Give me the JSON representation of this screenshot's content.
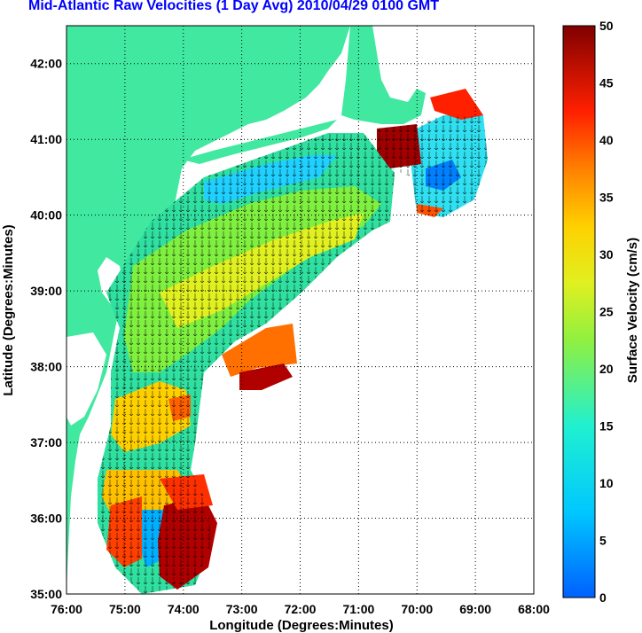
{
  "title": "Mid-Atlantic Raw Velocities (1 Day Avg) 2010/04/29 0100 GMT",
  "x_axis": {
    "label": "Longitude (Degrees:Minutes)",
    "ticks": [
      "76:00",
      "75:00",
      "74:00",
      "73:00",
      "72:00",
      "71:00",
      "70:00",
      "69:00",
      "68:00"
    ]
  },
  "y_axis": {
    "label": "Latitude (Degrees:Minutes)",
    "ticks": [
      "35:00",
      "36:00",
      "37:00",
      "38:00",
      "39:00",
      "40:00",
      "41:00",
      "42:00"
    ]
  },
  "colorbar": {
    "label": "Surface Velocity (cm/s)",
    "ticks": [
      "0",
      "5",
      "10",
      "15",
      "20",
      "25",
      "30",
      "35",
      "40",
      "45",
      "50"
    ],
    "min": 0,
    "max": 50,
    "colormap": "jet"
  },
  "colors": {
    "land": "#40e8a0",
    "ocean": "#ffffff",
    "grid": "#000000",
    "title": "#0000ff"
  },
  "map_extent": {
    "lon": [
      -76,
      -68
    ],
    "lat": [
      35,
      42.5
    ]
  }
}
